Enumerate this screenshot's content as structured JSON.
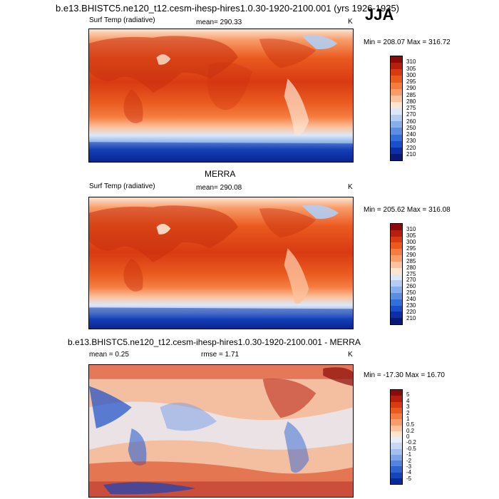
{
  "header": {
    "main_title": "b.e13.BHISTC5.ne120_t12.cesm-ihesp-hires1.0.30-1920-2100.001 (yrs 1926-1935)",
    "season": "JJA"
  },
  "panels": [
    {
      "id": "model",
      "title": "",
      "variable": "Surf Temp (radiative)",
      "mean_text": "mean= 290.33",
      "rmse_text": "",
      "units": "K",
      "minmax": "Min = 208.07 Max = 316.72",
      "colorbar": {
        "labels": [
          "310",
          "305",
          "300",
          "295",
          "290",
          "285",
          "280",
          "275",
          "270",
          "260",
          "250",
          "240",
          "230",
          "220",
          "210"
        ],
        "colors": [
          "#8b0a0a",
          "#b81e0e",
          "#d83a12",
          "#ea5a1f",
          "#f47c3f",
          "#f89c68",
          "#fbc29e",
          "#fde5d2",
          "#dce8f8",
          "#b3cdf2",
          "#86aeea",
          "#5b8de2",
          "#346ed8",
          "#1a4fc9",
          "#0c2fa5",
          "#081a78"
        ]
      }
    },
    {
      "id": "obs",
      "title": "MERRA",
      "variable": "Surf Temp (radiative)",
      "mean_text": "mean= 290.08",
      "rmse_text": "",
      "units": "K",
      "minmax": "Min = 205.62 Max = 316.08",
      "colorbar": {
        "labels": [
          "310",
          "305",
          "300",
          "295",
          "290",
          "285",
          "280",
          "275",
          "270",
          "260",
          "250",
          "240",
          "230",
          "220",
          "210"
        ],
        "colors": [
          "#8b0a0a",
          "#b81e0e",
          "#d83a12",
          "#ea5a1f",
          "#f47c3f",
          "#f89c68",
          "#fbc29e",
          "#fde5d2",
          "#dce8f8",
          "#b3cdf2",
          "#86aeea",
          "#5b8de2",
          "#346ed8",
          "#1a4fc9",
          "#0c2fa5",
          "#081a78"
        ]
      }
    },
    {
      "id": "diff",
      "title": "b.e13.BHISTC5.ne120_t12.cesm-ihesp-hires1.0.30-1920-2100.001 - MERRA",
      "variable": "",
      "mean_text": "mean =   0.25",
      "rmse_text": "rmse =   1.71",
      "units": "K",
      "minmax": "Min = -17.30 Max =  16.70",
      "colorbar": {
        "labels": [
          "5",
          "4",
          "3",
          "2",
          "1",
          "0.5",
          "0.2",
          "0",
          "-0.2",
          "-0.5",
          "-1",
          "-2",
          "-3",
          "-4",
          "-5"
        ],
        "colors": [
          "#8b0a0a",
          "#b81e0e",
          "#d83a12",
          "#ea5a1f",
          "#f47c3f",
          "#f89c68",
          "#fbc29e",
          "#fde5d2",
          "#e7eefb",
          "#c7d8f4",
          "#a3bfee",
          "#7ea3e6",
          "#5684dc",
          "#2f63d1",
          "#1544bb",
          "#0a2a95"
        ]
      }
    }
  ]
}
